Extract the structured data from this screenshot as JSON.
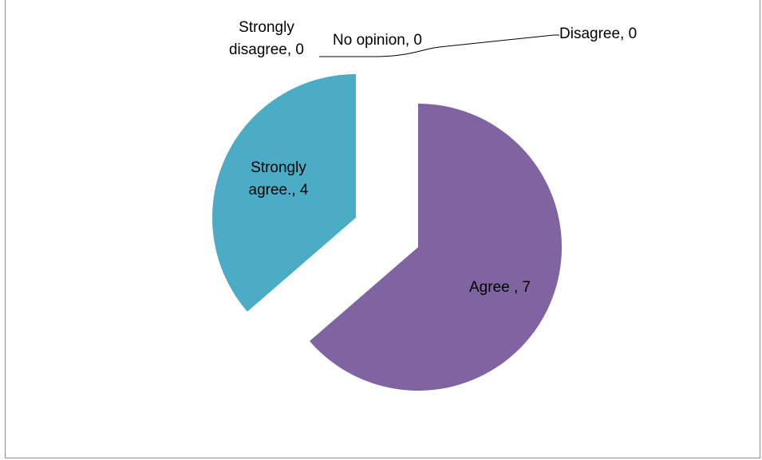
{
  "chart_data": {
    "type": "pie",
    "title": "",
    "legend": "none",
    "exploded": true,
    "slices": [
      {
        "label": "Agree ,",
        "value": 7,
        "color": "#8064a2"
      },
      {
        "label": "Disagree,",
        "value": 0,
        "color": "#c0504d"
      },
      {
        "label": "No opinion,",
        "value": 0,
        "color": "#9bbb59"
      },
      {
        "label": "Strongly disagree,",
        "value": 0,
        "color": "#f79646"
      },
      {
        "label": "Strongly agree.,",
        "value": 4,
        "color": "#4bacc6"
      }
    ],
    "data_labels": [
      {
        "lines": [
          "Agree , 7"
        ]
      },
      {
        "lines": [
          "Disagree, 0"
        ]
      },
      {
        "lines": [
          "No opinion, 0"
        ]
      },
      {
        "lines": [
          "Strongly",
          "disagree, 0"
        ]
      },
      {
        "lines": [
          "Strongly",
          "agree., 4"
        ]
      }
    ]
  }
}
